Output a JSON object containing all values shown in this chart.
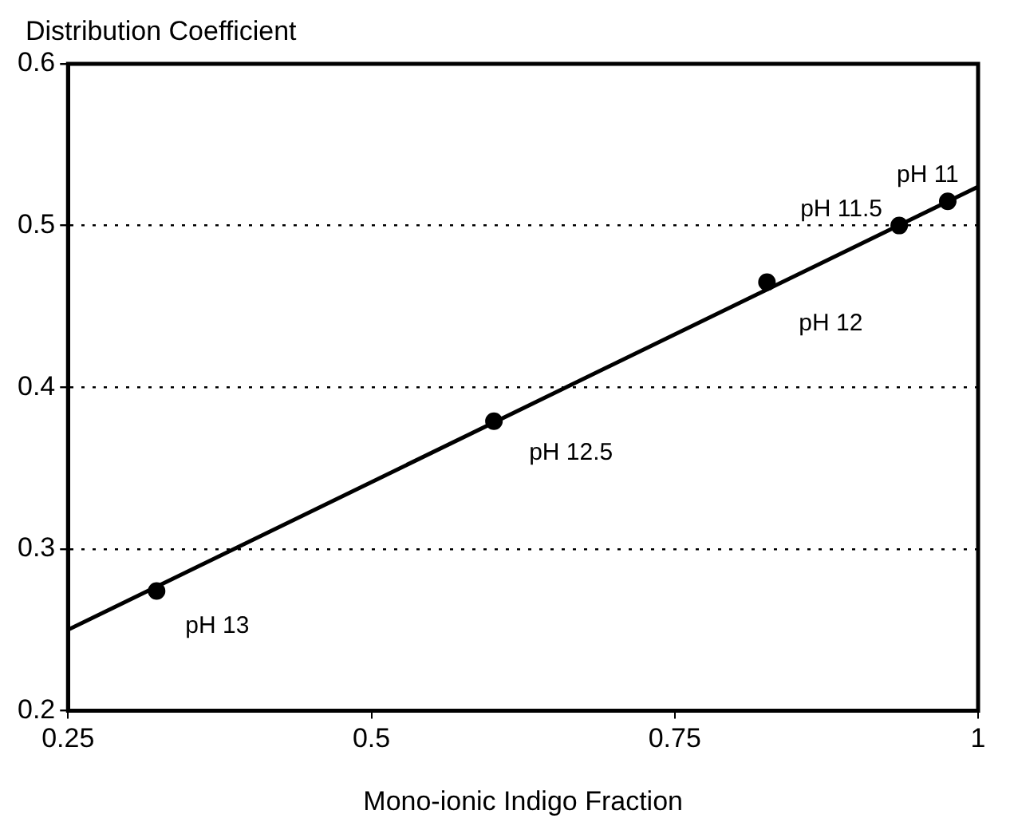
{
  "chart_data": {
    "type": "scatter",
    "ylabel": "Distribution Coefficient",
    "xlabel": "Mono-ionic Indigo Fraction",
    "series": [
      {
        "type": "scatter",
        "color": "#000000",
        "marker": "circle",
        "x": [
          0.323,
          0.601,
          0.826,
          0.935,
          0.975
        ],
        "values": [
          0.274,
          0.379,
          0.465,
          0.5,
          0.515
        ]
      },
      {
        "type": "line",
        "color": "#000000",
        "marker": "none",
        "line_style": "solid",
        "x": [
          0.25,
          1
        ],
        "values": [
          0.25,
          0.524
        ]
      }
    ],
    "annotations": [
      {
        "text": "pH 13",
        "x": 0.323,
        "y": 0.274
      },
      {
        "text": "pH 12.5",
        "x": 0.601,
        "y": 0.379
      },
      {
        "text": "pH 12",
        "x": 0.826,
        "y": 0.465
      },
      {
        "text": "pH 11.5",
        "x": 0.935,
        "y": 0.5
      },
      {
        "text": "pH 11",
        "x": 0.975,
        "y": 0.515
      }
    ],
    "xlim": [
      0.25,
      1
    ],
    "xticks": [
      0.25,
      0.5,
      0.75,
      1
    ],
    "ylim": [
      0.2,
      0.6
    ],
    "yticks": [
      0.2,
      0.3,
      0.4,
      0.5,
      0.6
    ],
    "grid": "y",
    "legend": false
  }
}
